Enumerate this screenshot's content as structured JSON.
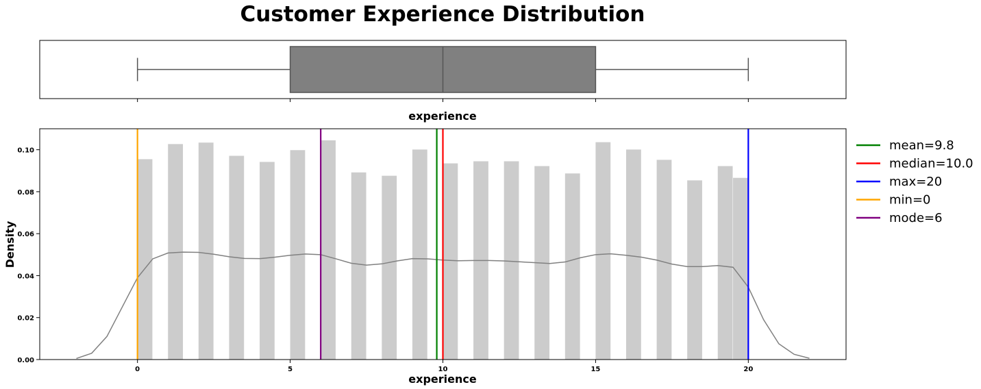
{
  "chart_data": {
    "title": "Customer Experience Distribution",
    "boxplot": {
      "type": "box",
      "variable": "experience",
      "xlabel": "experience",
      "min": 0,
      "q1": 5,
      "median": 10,
      "q3": 15,
      "max": 20,
      "xlim": [
        -3.2,
        23.2
      ],
      "box_color": "#808080"
    },
    "histogram": {
      "type": "bar",
      "xlabel": "experience",
      "ylabel": "Density",
      "xlim": [
        -3.2,
        23.2
      ],
      "ylim": [
        0,
        0.11
      ],
      "xticks": [
        0,
        5,
        10,
        15,
        20
      ],
      "xtick_labels": [
        "0",
        "5",
        "10",
        "15",
        "20"
      ],
      "yticks": [
        0,
        0.02,
        0.04,
        0.06,
        0.08,
        0.1
      ],
      "ytick_labels": [
        "0.00",
        "0.02",
        "0.04",
        "0.06",
        "0.08",
        "0.10"
      ],
      "bar_color": "#cccccc",
      "bins": [
        {
          "x0": 0.0,
          "x1": 0.5,
          "value": 0.0955
        },
        {
          "x0": 1.0,
          "x1": 1.5,
          "value": 0.1027
        },
        {
          "x0": 2.0,
          "x1": 2.5,
          "value": 0.1034
        },
        {
          "x0": 3.0,
          "x1": 3.5,
          "value": 0.0971
        },
        {
          "x0": 4.0,
          "x1": 4.5,
          "value": 0.0942
        },
        {
          "x0": 5.0,
          "x1": 5.5,
          "value": 0.0998
        },
        {
          "x0": 6.0,
          "x1": 6.5,
          "value": 0.1045
        },
        {
          "x0": 7.0,
          "x1": 7.5,
          "value": 0.0892
        },
        {
          "x0": 8.0,
          "x1": 8.5,
          "value": 0.0876
        },
        {
          "x0": 9.0,
          "x1": 9.5,
          "value": 0.1001
        },
        {
          "x0": 10.0,
          "x1": 10.5,
          "value": 0.0935
        },
        {
          "x0": 11.0,
          "x1": 11.5,
          "value": 0.0945
        },
        {
          "x0": 12.0,
          "x1": 12.5,
          "value": 0.0945
        },
        {
          "x0": 13.0,
          "x1": 13.5,
          "value": 0.0922
        },
        {
          "x0": 14.0,
          "x1": 14.5,
          "value": 0.0887
        },
        {
          "x0": 15.0,
          "x1": 15.5,
          "value": 0.1036
        },
        {
          "x0": 16.0,
          "x1": 16.5,
          "value": 0.1001
        },
        {
          "x0": 17.0,
          "x1": 17.5,
          "value": 0.0952
        },
        {
          "x0": 18.0,
          "x1": 18.5,
          "value": 0.0854
        },
        {
          "x0": 19.0,
          "x1": 19.5,
          "value": 0.0922
        },
        {
          "x0": 19.5,
          "x1": 20.0,
          "value": 0.0866
        }
      ],
      "kde": {
        "color": "#808080",
        "points": [
          [
            -2.0,
            0.0005
          ],
          [
            -1.5,
            0.003
          ],
          [
            -1.0,
            0.011
          ],
          [
            -0.5,
            0.025
          ],
          [
            0.0,
            0.039
          ],
          [
            0.5,
            0.048
          ],
          [
            1.0,
            0.0508
          ],
          [
            1.5,
            0.0512
          ],
          [
            2.0,
            0.0511
          ],
          [
            2.5,
            0.0502
          ],
          [
            3.0,
            0.049
          ],
          [
            3.5,
            0.0482
          ],
          [
            4.0,
            0.0481
          ],
          [
            4.5,
            0.0488
          ],
          [
            5.0,
            0.0497
          ],
          [
            5.5,
            0.0503
          ],
          [
            6.0,
            0.05
          ],
          [
            6.5,
            0.048
          ],
          [
            7.0,
            0.0459
          ],
          [
            7.5,
            0.045
          ],
          [
            8.0,
            0.0456
          ],
          [
            8.5,
            0.047
          ],
          [
            9.0,
            0.0481
          ],
          [
            9.5,
            0.048
          ],
          [
            10.0,
            0.0474
          ],
          [
            10.5,
            0.0471
          ],
          [
            11.0,
            0.0472
          ],
          [
            11.5,
            0.0472
          ],
          [
            12.0,
            0.047
          ],
          [
            12.5,
            0.0466
          ],
          [
            13.0,
            0.0462
          ],
          [
            13.5,
            0.0458
          ],
          [
            14.0,
            0.0465
          ],
          [
            14.5,
            0.0485
          ],
          [
            15.0,
            0.05
          ],
          [
            15.5,
            0.0504
          ],
          [
            16.0,
            0.0497
          ],
          [
            16.5,
            0.0488
          ],
          [
            17.0,
            0.0474
          ],
          [
            17.5,
            0.0455
          ],
          [
            18.0,
            0.0443
          ],
          [
            18.5,
            0.0443
          ],
          [
            19.0,
            0.0448
          ],
          [
            19.5,
            0.044
          ],
          [
            20.0,
            0.0345
          ],
          [
            20.5,
            0.019
          ],
          [
            21.0,
            0.0075
          ],
          [
            21.5,
            0.0025
          ],
          [
            22.0,
            0.0006
          ]
        ]
      },
      "vlines": [
        {
          "label": "mean=9.8",
          "x": 9.8,
          "color": "#008000"
        },
        {
          "label": "median=10.0",
          "x": 10.0,
          "color": "#ff0000"
        },
        {
          "label": "max=20",
          "x": 20,
          "color": "#0000ff"
        },
        {
          "label": "min=0",
          "x": 0,
          "color": "#ffa500"
        },
        {
          "label": "mode=6",
          "x": 6,
          "color": "#800080"
        }
      ],
      "legend_position": "outside-right"
    }
  }
}
